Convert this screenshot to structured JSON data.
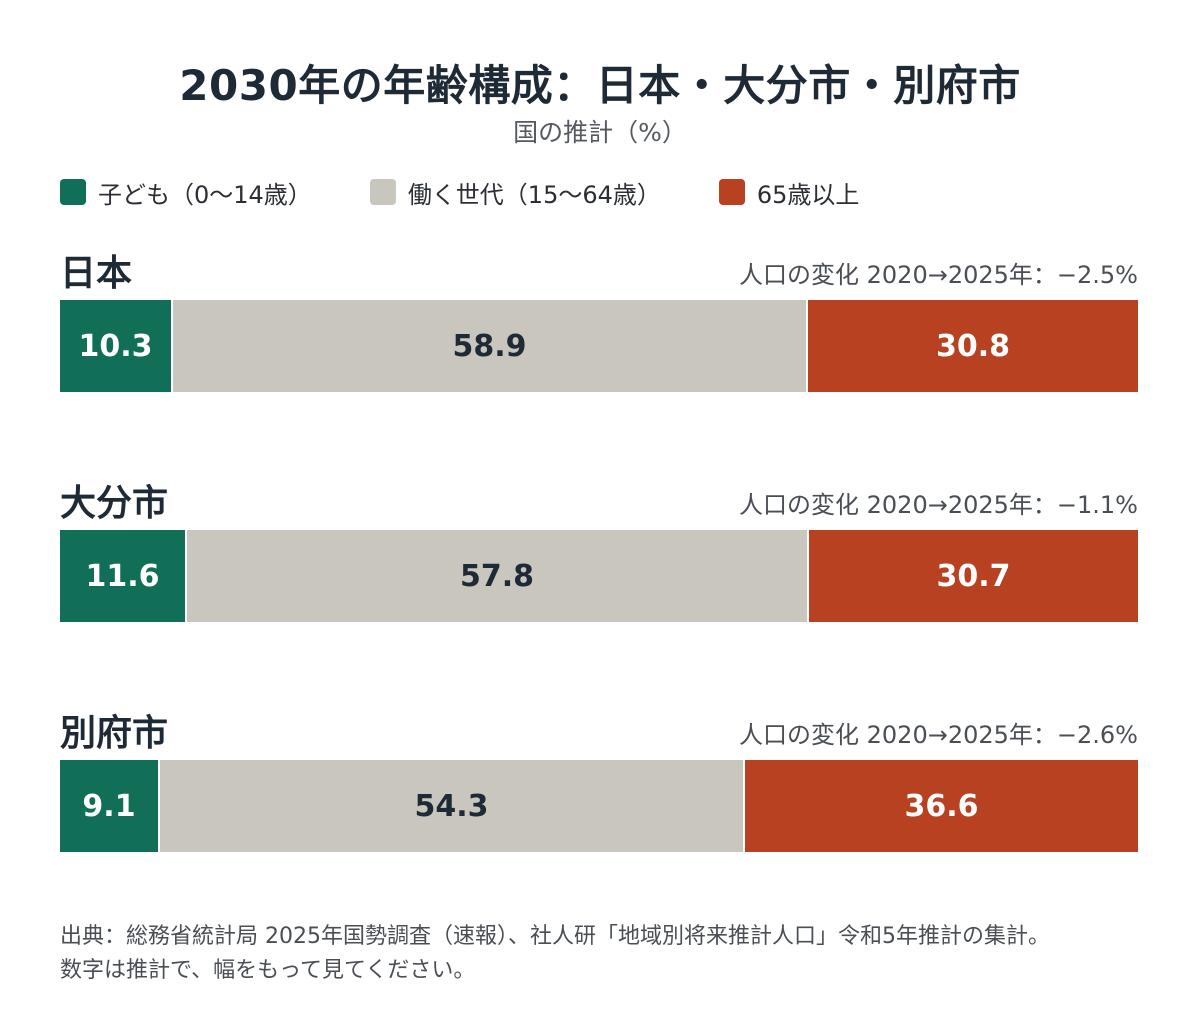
{
  "title": "2030年の年齢構成：日本・大分市・別府市",
  "subtitle": "国の推計（%）",
  "legend": [
    {
      "label": "子ども（0〜14歳）",
      "color": "#116e57"
    },
    {
      "label": "働く世代（15〜64歳）",
      "color": "#c8c6bd"
    },
    {
      "label": "65歳以上",
      "color": "#b74121"
    }
  ],
  "chart_data": {
    "type": "bar",
    "stacked": true,
    "orientation": "horizontal",
    "categories": [
      "日本",
      "大分市",
      "別府市"
    ],
    "series": [
      {
        "name": "子ども（0〜14歳）",
        "color": "#116e57",
        "values": [
          10.3,
          11.6,
          9.1
        ]
      },
      {
        "name": "働く世代（15〜64歳）",
        "color": "#c8c6bd",
        "values": [
          58.9,
          57.8,
          54.3
        ]
      },
      {
        "name": "65歳以上",
        "color": "#b74121",
        "values": [
          30.8,
          30.7,
          36.6
        ]
      }
    ],
    "population_change": [
      "人口の変化 2020→2025年：−2.5%",
      "人口の変化 2020→2025年：−1.1%",
      "人口の変化 2020→2025年：−2.6%"
    ],
    "value_labels": [
      [
        "10.3",
        "58.9",
        "30.8"
      ],
      [
        "11.6",
        "57.8",
        "30.7"
      ],
      [
        "9.1",
        "54.3",
        "36.6"
      ]
    ],
    "label_colors": [
      "#ffffff",
      "#1f2a37",
      "#ffffff"
    ]
  },
  "source": [
    "出典：総務省統計局 2025年国勢調査（速報）、社人研「地域別将来推計人口」令和5年推計の集計。",
    "数字は推計で、幅をもって見てください。"
  ]
}
